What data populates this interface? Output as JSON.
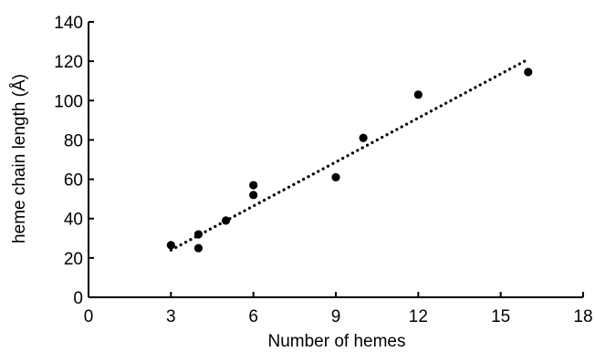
{
  "chart_data": {
    "type": "scatter",
    "title": "",
    "xlabel": "Number of hemes",
    "ylabel": "heme chain length (Å)",
    "xlim": [
      0,
      18
    ],
    "ylim": [
      0,
      140
    ],
    "xticks": [
      0,
      3,
      6,
      9,
      12,
      15,
      18
    ],
    "yticks": [
      0,
      20,
      40,
      60,
      80,
      100,
      120,
      140
    ],
    "grid": false,
    "legend": "none",
    "series": [
      {
        "points": [
          {
            "x": 3,
            "y": 26.5
          },
          {
            "x": 4,
            "y": 32
          },
          {
            "x": 4,
            "y": 25
          },
          {
            "x": 5,
            "y": 39
          },
          {
            "x": 6,
            "y": 57
          },
          {
            "x": 6,
            "y": 52
          },
          {
            "x": 9,
            "y": 61
          },
          {
            "x": 10,
            "y": 81
          },
          {
            "x": 12,
            "y": 103
          },
          {
            "x": 16,
            "y": 114.5
          }
        ]
      }
    ],
    "trendline": {
      "style": "dotted",
      "x": [
        3,
        16
      ],
      "y": [
        24,
        121
      ]
    },
    "colors": {
      "marker": "#000000",
      "axis": "#000000",
      "trendline": "#000000"
    }
  }
}
